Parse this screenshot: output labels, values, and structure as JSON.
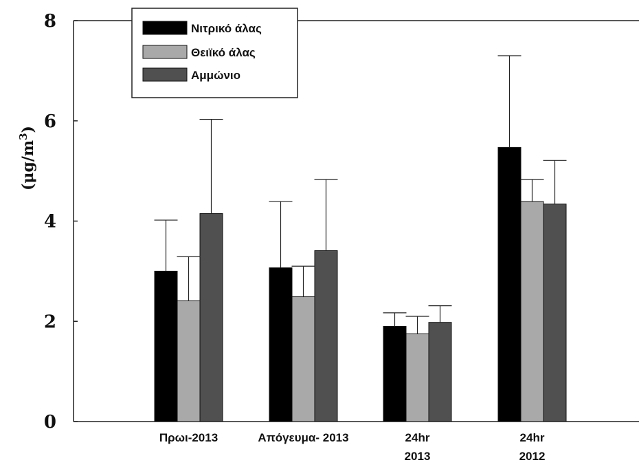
{
  "chart_data": {
    "type": "bar",
    "categories": [
      [
        "Πρωι-2013"
      ],
      [
        "Απόγευμα- 2013"
      ],
      [
        "24hr",
        "2013"
      ],
      [
        "24hr",
        "2012"
      ]
    ],
    "series": [
      {
        "name": "Νιτρικό άλας",
        "color": "#000000",
        "values": [
          3.0,
          3.07,
          1.9,
          5.47
        ],
        "errors": [
          1.02,
          1.32,
          0.27,
          1.83
        ]
      },
      {
        "name": "Θειϊκό άλας",
        "color": "#a9a9a9",
        "values": [
          2.41,
          2.49,
          1.75,
          4.39
        ],
        "errors": [
          0.88,
          0.61,
          0.35,
          0.44
        ]
      },
      {
        "name": "Αμμώνιο",
        "color": "#505050",
        "values": [
          4.15,
          3.41,
          1.98,
          4.34
        ],
        "errors": [
          1.88,
          1.42,
          0.33,
          0.87
        ]
      }
    ],
    "ylabel": "(μg/m3)",
    "ylim": [
      0,
      8
    ],
    "yticks": [
      0,
      2,
      4,
      6,
      8
    ],
    "legend_position": "top-left",
    "grid": false
  }
}
